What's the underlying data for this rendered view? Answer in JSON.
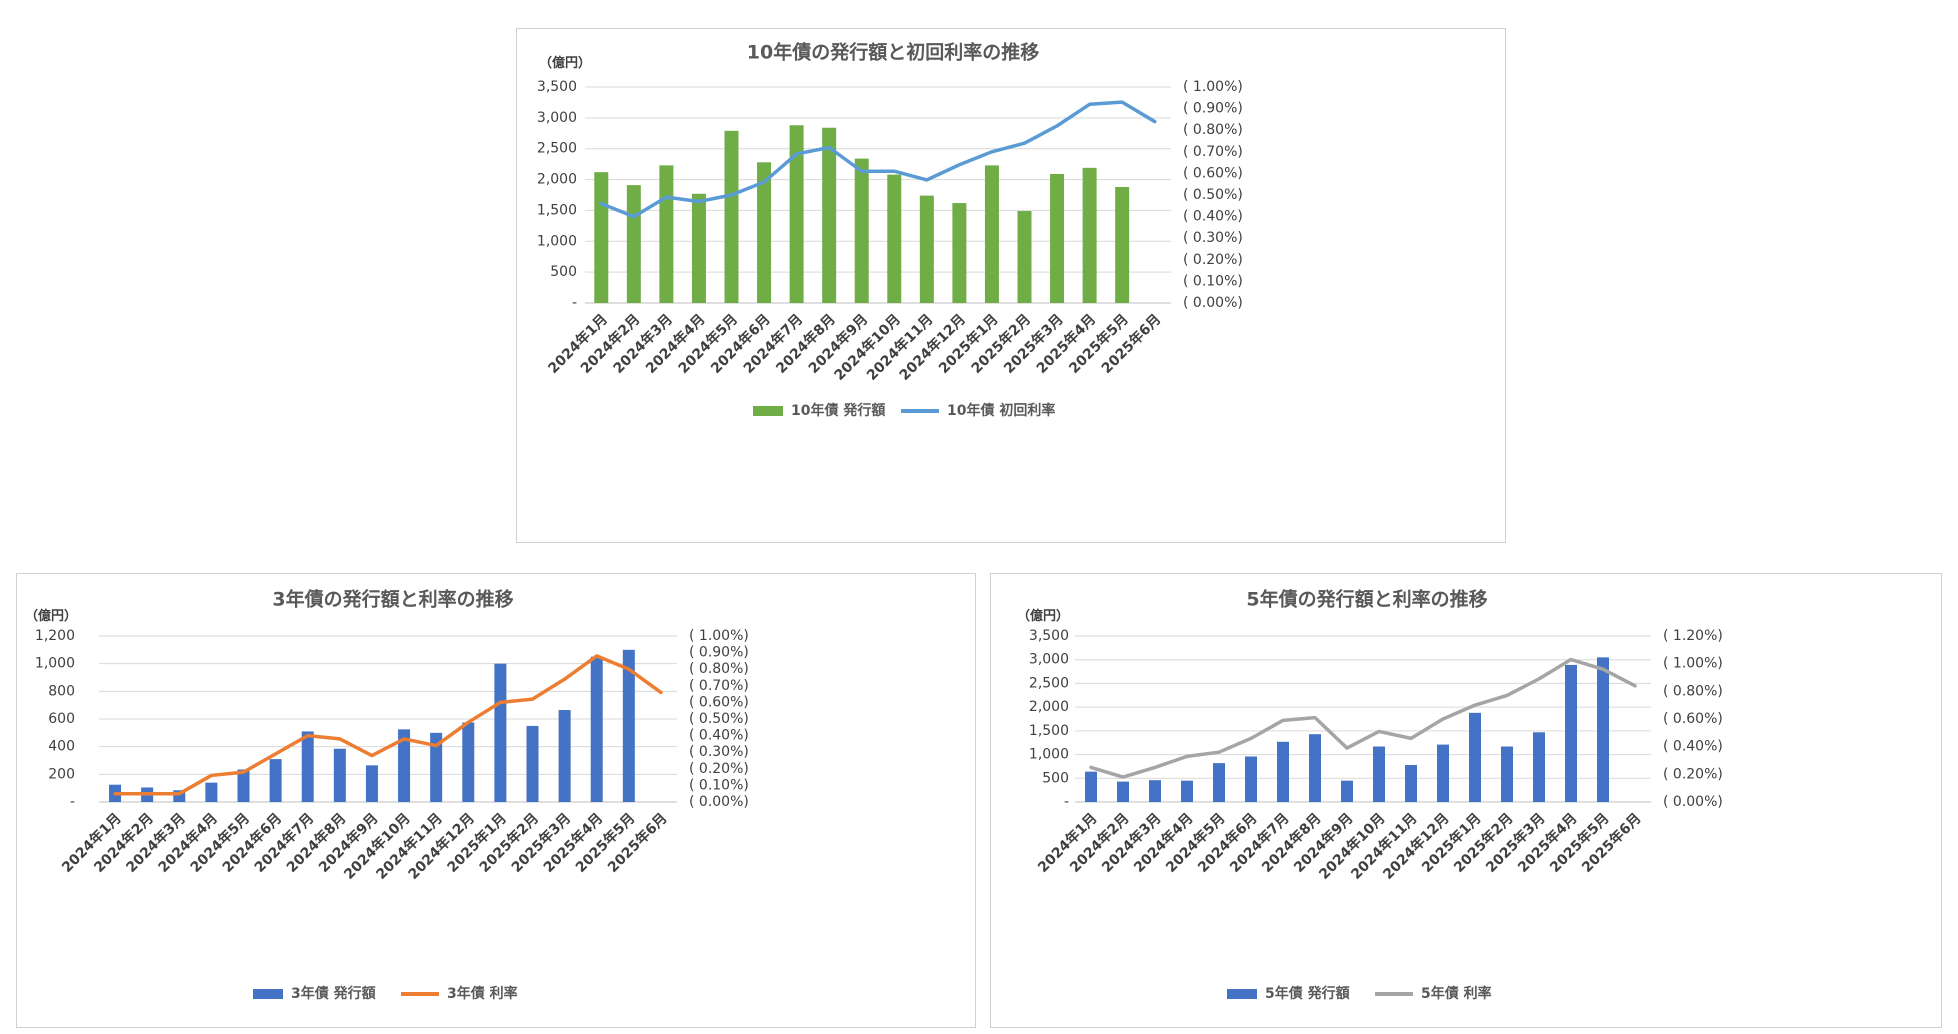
{
  "chart_data": [
    {
      "id": "10y",
      "type": "bar",
      "title": "10年債の発行額と初回利率の推移",
      "unit_label": "（億円）",
      "categories": [
        "2024年1月",
        "2024年2月",
        "2024年3月",
        "2024年4月",
        "2024年5月",
        "2024年6月",
        "2024年7月",
        "2024年8月",
        "2024年9月",
        "2024年10月",
        "2024年11月",
        "2024年12月",
        "2025年1月",
        "2025年2月",
        "2025年3月",
        "2025年4月",
        "2025年5月",
        "2025年6月"
      ],
      "ylim": [
        0,
        3500
      ],
      "y_ticks": [
        0,
        500,
        1000,
        1500,
        2000,
        2500,
        3000,
        3500
      ],
      "y_tick_labels": [
        "-",
        "500",
        "1,000",
        "1,500",
        "2,000",
        "2,500",
        "3,000",
        "3,500"
      ],
      "y2lim": [
        0,
        1.0
      ],
      "y2_ticks": [
        0,
        0.1,
        0.2,
        0.3,
        0.4,
        0.5,
        0.6,
        0.7,
        0.8,
        0.9,
        1.0
      ],
      "y2_tick_labels": [
        "( 0.00%)",
        "( 0.10%)",
        "( 0.20%)",
        "( 0.30%)",
        "( 0.40%)",
        "( 0.50%)",
        "( 0.60%)",
        "( 0.70%)",
        "( 0.80%)",
        "( 0.90%)",
        "( 1.00%)"
      ],
      "series": [
        {
          "name": "10年債 発行額",
          "kind": "bar",
          "color": "#70ad47",
          "axis": "left",
          "values": [
            2120,
            1910,
            2230,
            1770,
            2790,
            2280,
            2880,
            2840,
            2340,
            2080,
            1740,
            1620,
            2230,
            1490,
            2090,
            2190,
            1880,
            null
          ]
        },
        {
          "name": "10年債 初回利率",
          "kind": "line",
          "color": "#5b9bd5",
          "axis": "right",
          "values": [
            0.46,
            0.4,
            0.49,
            0.47,
            0.5,
            0.56,
            0.69,
            0.72,
            0.61,
            0.61,
            0.57,
            0.64,
            0.7,
            0.74,
            0.82,
            0.92,
            0.93,
            0.84
          ]
        }
      ]
    },
    {
      "id": "3y",
      "type": "bar",
      "title": "3年債の発行額と利率の推移",
      "unit_label": "（億円）",
      "categories": [
        "2024年1月",
        "2024年2月",
        "2024年3月",
        "2024年4月",
        "2024年5月",
        "2024年6月",
        "2024年7月",
        "2024年8月",
        "2024年9月",
        "2024年10月",
        "2024年11月",
        "2024年12月",
        "2025年1月",
        "2025年2月",
        "2025年3月",
        "2025年4月",
        "2025年5月",
        "2025年6月"
      ],
      "ylim": [
        0,
        1200
      ],
      "y_ticks": [
        0,
        200,
        400,
        600,
        800,
        1000,
        1200
      ],
      "y_tick_labels": [
        "-",
        "200",
        "400",
        "600",
        "800",
        "1,000",
        "1,200"
      ],
      "y2lim": [
        0,
        1.0
      ],
      "y2_ticks": [
        0,
        0.1,
        0.2,
        0.3,
        0.4,
        0.5,
        0.6,
        0.7,
        0.8,
        0.9,
        1.0
      ],
      "y2_tick_labels": [
        "( 0.00%)",
        "( 0.10%)",
        "( 0.20%)",
        "( 0.30%)",
        "( 0.40%)",
        "( 0.50%)",
        "( 0.60%)",
        "( 0.70%)",
        "( 0.80%)",
        "( 0.90%)",
        "( 1.00%)"
      ],
      "series": [
        {
          "name": "3年債 発行額",
          "kind": "bar",
          "color": "#4472c4",
          "axis": "left",
          "values": [
            125,
            105,
            85,
            140,
            235,
            310,
            510,
            385,
            265,
            525,
            500,
            575,
            1000,
            550,
            665,
            1050,
            1100,
            null
          ]
        },
        {
          "name": "3年債 利率",
          "kind": "line",
          "color": "#ed7d31",
          "axis": "right",
          "values": [
            0.05,
            0.05,
            0.05,
            0.16,
            0.18,
            0.29,
            0.4,
            0.38,
            0.28,
            0.38,
            0.34,
            0.48,
            0.6,
            0.62,
            0.74,
            0.88,
            0.8,
            0.66
          ]
        }
      ]
    },
    {
      "id": "5y",
      "type": "bar",
      "title": "5年債の発行額と利率の推移",
      "unit_label": "（億円）",
      "categories": [
        "2024年1月",
        "2024年2月",
        "2024年3月",
        "2024年4月",
        "2024年5月",
        "2024年6月",
        "2024年7月",
        "2024年8月",
        "2024年9月",
        "2024年10月",
        "2024年11月",
        "2024年12月",
        "2025年1月",
        "2025年2月",
        "2025年3月",
        "2025年4月",
        "2025年5月",
        "2025年6月"
      ],
      "ylim": [
        0,
        3500
      ],
      "y_ticks": [
        0,
        500,
        1000,
        1500,
        2000,
        2500,
        3000,
        3500
      ],
      "y_tick_labels": [
        "-",
        "500",
        "1,000",
        "1,500",
        "2,000",
        "2,500",
        "3,000",
        "3,500"
      ],
      "y2lim": [
        0,
        1.2
      ],
      "y2_ticks": [
        0,
        0.2,
        0.4,
        0.6,
        0.8,
        1.0,
        1.2
      ],
      "y2_tick_labels": [
        "( 0.00%)",
        "( 0.20%)",
        "( 0.40%)",
        "( 0.60%)",
        "( 0.80%)",
        "( 1.00%)",
        "( 1.20%)"
      ],
      "series": [
        {
          "name": "5年債 発行額",
          "kind": "bar",
          "color": "#4472c4",
          "axis": "left",
          "values": [
            640,
            430,
            460,
            450,
            820,
            960,
            1270,
            1430,
            450,
            1170,
            780,
            1210,
            1880,
            1170,
            1470,
            2890,
            3050,
            null
          ]
        },
        {
          "name": "5年債 利率",
          "kind": "line",
          "color": "#a5a5a5",
          "axis": "right",
          "values": [
            0.25,
            0.18,
            0.25,
            0.33,
            0.36,
            0.46,
            0.59,
            0.61,
            0.39,
            0.51,
            0.46,
            0.6,
            0.7,
            0.77,
            0.89,
            1.03,
            0.96,
            0.84
          ]
        }
      ]
    }
  ]
}
